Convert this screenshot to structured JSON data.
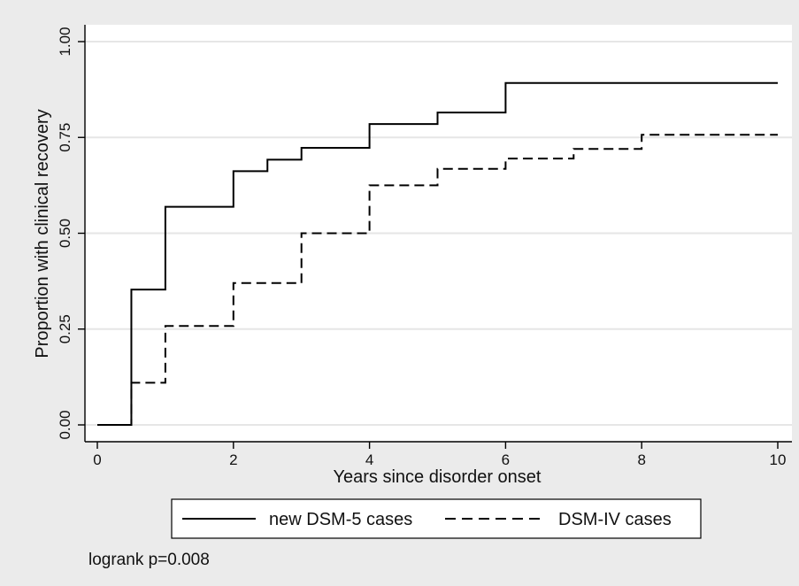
{
  "chart_data": {
    "type": "line",
    "step": true,
    "xlabel": "Years since disorder onset",
    "ylabel": "Proportion with clinical recovery",
    "xlim": [
      0,
      10
    ],
    "ylim": [
      0,
      1
    ],
    "x_ticks": [
      0,
      2,
      4,
      6,
      8,
      10
    ],
    "x_tick_labels": [
      "0",
      "2",
      "4",
      "6",
      "8",
      "10"
    ],
    "y_ticks": [
      0,
      0.25,
      0.5,
      0.75,
      1.0
    ],
    "y_tick_labels": [
      "0.00",
      "0.25",
      "0.50",
      "0.75",
      "1.00"
    ],
    "grid": "horizontal",
    "legend_position": "bottom",
    "series": [
      {
        "name": "new DSM-5 cases",
        "style": "solid",
        "color": "#000000",
        "x": [
          0,
          0.5,
          1,
          2,
          2.5,
          3,
          4,
          5,
          6,
          10
        ],
        "y": [
          0,
          0.353,
          0.569,
          0.662,
          0.692,
          0.723,
          0.785,
          0.815,
          0.892,
          0.892
        ]
      },
      {
        "name": "DSM-IV cases",
        "style": "dashed",
        "color": "#000000",
        "x": [
          0,
          0.5,
          1,
          2,
          3,
          4,
          5,
          6,
          7,
          8,
          10
        ],
        "y": [
          0,
          0.11,
          0.258,
          0.37,
          0.5,
          0.625,
          0.668,
          0.695,
          0.72,
          0.757,
          0.757
        ]
      }
    ],
    "annotation": "logrank p=0.008"
  },
  "colors": {
    "outer_background": "#ebebeb",
    "plot_background": "#ffffff",
    "grid": "#e6e6e6",
    "line": "#000000"
  }
}
